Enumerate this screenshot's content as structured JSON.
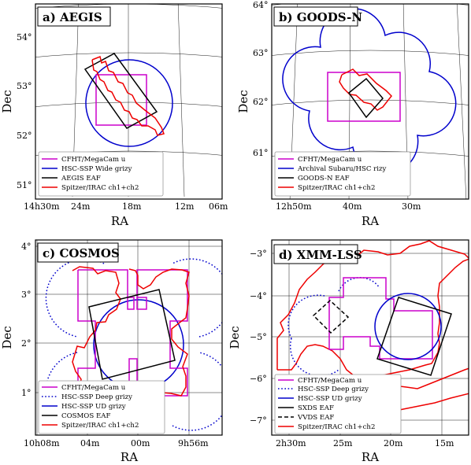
{
  "panels": [
    {
      "key": "aegis",
      "title": "a) AEGIS",
      "xlabel": "RA",
      "ylabel": "Dec",
      "xticks": [
        "14h30m",
        "24m",
        "18m",
        "12m",
        "06m"
      ],
      "yticks": [
        "51°",
        "52°",
        "53°",
        "54°"
      ],
      "legend": [
        {
          "label": "CFHT/MegaCam u",
          "color": "#cc00cc",
          "style": "solid"
        },
        {
          "label": "HSC-SSP Wide grizy",
          "color": "#0000cc",
          "style": "solid"
        },
        {
          "label": "AEGIS EAF",
          "color": "#000000",
          "style": "solid"
        },
        {
          "label": "Spitzer/IRAC ch1+ch2",
          "color": "#ee0000",
          "style": "solid"
        }
      ]
    },
    {
      "key": "goodsn",
      "title": "b) GOODS-N",
      "xlabel": "RA",
      "ylabel": "Dec",
      "xticks": [
        "12h50m",
        "40m",
        "30m"
      ],
      "yticks": [
        "61°",
        "62°",
        "63°",
        "64°"
      ],
      "legend": [
        {
          "label": "CFHT/MegaCam u",
          "color": "#cc00cc",
          "style": "solid"
        },
        {
          "label": "Archival Subaru/HSC rizy",
          "color": "#0000cc",
          "style": "solid"
        },
        {
          "label": "GOODS-N EAF",
          "color": "#000000",
          "style": "solid"
        },
        {
          "label": "Spitzer/IRAC ch1+ch2",
          "color": "#ee0000",
          "style": "solid"
        }
      ]
    },
    {
      "key": "cosmos",
      "title": "c) COSMOS",
      "xlabel": "RA",
      "ylabel": "Dec",
      "xticks": [
        "10h08m",
        "04m",
        "00m",
        "9h56m"
      ],
      "yticks": [
        "1°",
        "2°",
        "3°",
        "4°"
      ],
      "legend": [
        {
          "label": "CFHT/MegaCam u",
          "color": "#cc00cc",
          "style": "solid"
        },
        {
          "label": "HSC-SSP Deep grizy",
          "color": "#0000cc",
          "style": "dotted"
        },
        {
          "label": "HSC-SSP UD grizy",
          "color": "#0000cc",
          "style": "solid"
        },
        {
          "label": "COSMOS EAF",
          "color": "#000000",
          "style": "solid"
        },
        {
          "label": "Spitzer/IRAC ch1+ch2",
          "color": "#ee0000",
          "style": "solid"
        }
      ]
    },
    {
      "key": "xmmlss",
      "title": "d) XMM-LSS",
      "xlabel": "RA",
      "ylabel": "Dec",
      "xticks": [
        "2h30m",
        "25m",
        "20m",
        "15m"
      ],
      "yticks": [
        "−7°",
        "−6°",
        "−5°",
        "−4°",
        "−3°"
      ],
      "legend": [
        {
          "label": "CFHT/MegaCam u",
          "color": "#cc00cc",
          "style": "solid"
        },
        {
          "label": "HSC-SSP Deep grizy",
          "color": "#0000cc",
          "style": "dotted"
        },
        {
          "label": "HSC-SSP UD grizy",
          "color": "#0000cc",
          "style": "solid"
        },
        {
          "label": "SXDS EAF",
          "color": "#000000",
          "style": "solid"
        },
        {
          "label": "VVDS EAF",
          "color": "#000000",
          "style": "dashed"
        },
        {
          "label": "Spitzer/IRAC ch1+ch2",
          "color": "#ee0000",
          "style": "solid"
        }
      ]
    }
  ]
}
